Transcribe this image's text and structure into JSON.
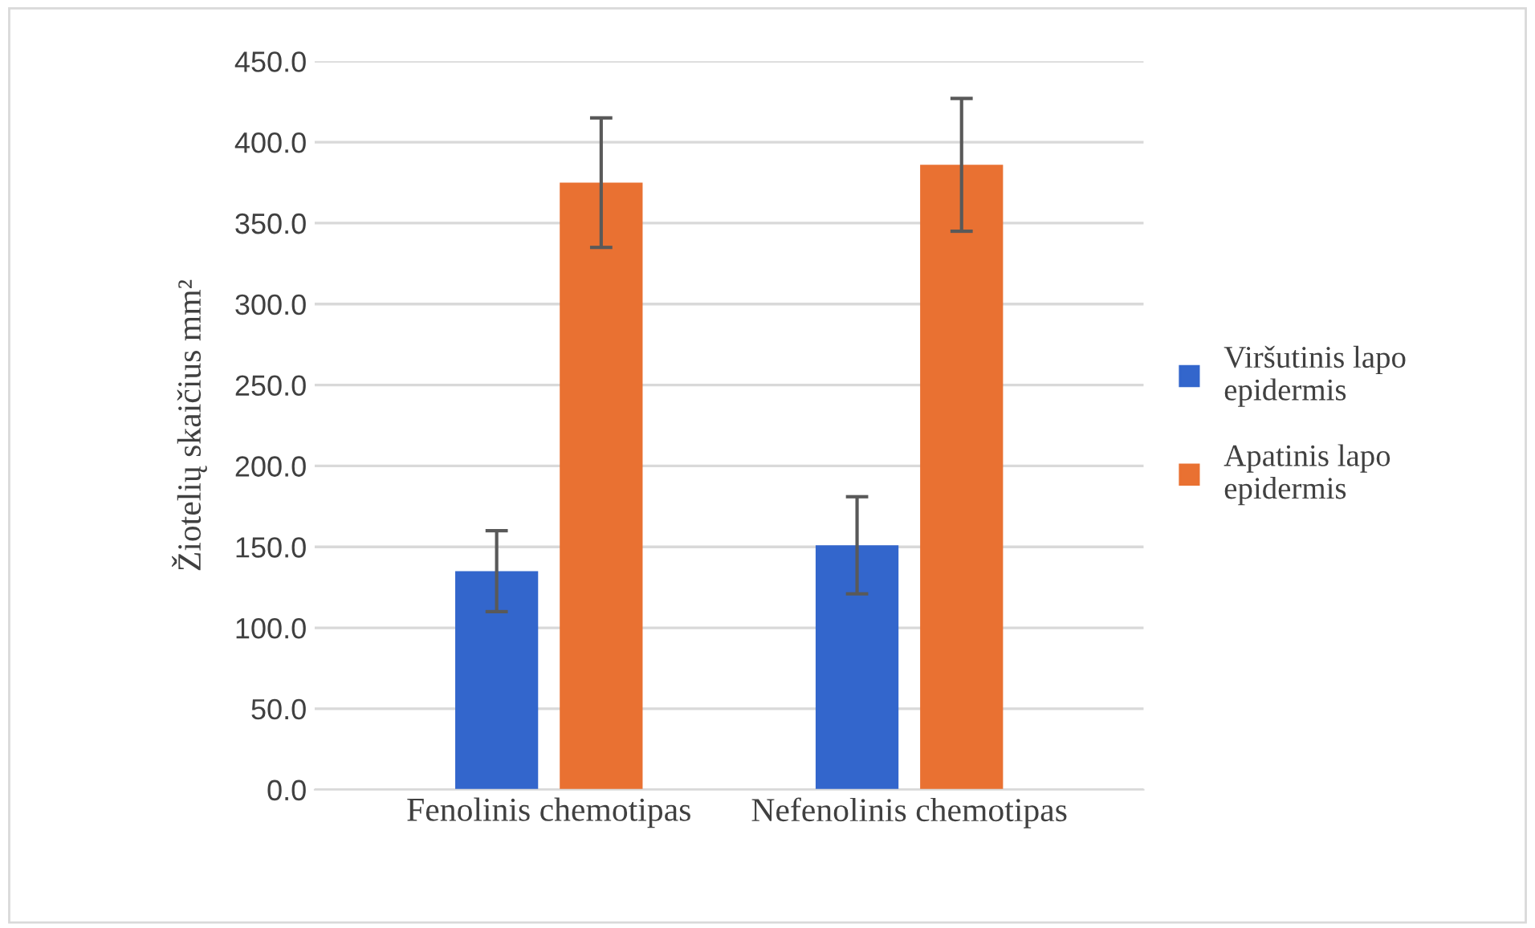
{
  "chart_data": {
    "type": "bar",
    "ylabel": "Žiotelių skaičius mm²",
    "categories": [
      "Fenolinis chemotipas",
      "Nefenolinis chemotipas"
    ],
    "series": [
      {
        "name": "Viršutinis lapo epidermis",
        "color": "#3366cc",
        "values": [
          135,
          151
        ],
        "errors": [
          25,
          30
        ]
      },
      {
        "name": "Apatinis lapo epidermis",
        "color": "#e97132",
        "values": [
          375,
          386
        ],
        "errors": [
          40,
          41
        ]
      }
    ],
    "ylim": [
      0,
      450
    ],
    "yticks": [
      {
        "value": 0,
        "label": "0.0"
      },
      {
        "value": 50,
        "label": "50.0"
      },
      {
        "value": 100,
        "label": "100.0"
      },
      {
        "value": 150,
        "label": "150.0"
      },
      {
        "value": 200,
        "label": "200.0"
      },
      {
        "value": 250,
        "label": "250.0"
      },
      {
        "value": 300,
        "label": "300.0"
      },
      {
        "value": 350,
        "label": "350.0"
      },
      {
        "value": 400,
        "label": "400.0"
      },
      {
        "value": 450,
        "label": "450.0"
      }
    ],
    "grid": "y",
    "legend": "right"
  }
}
